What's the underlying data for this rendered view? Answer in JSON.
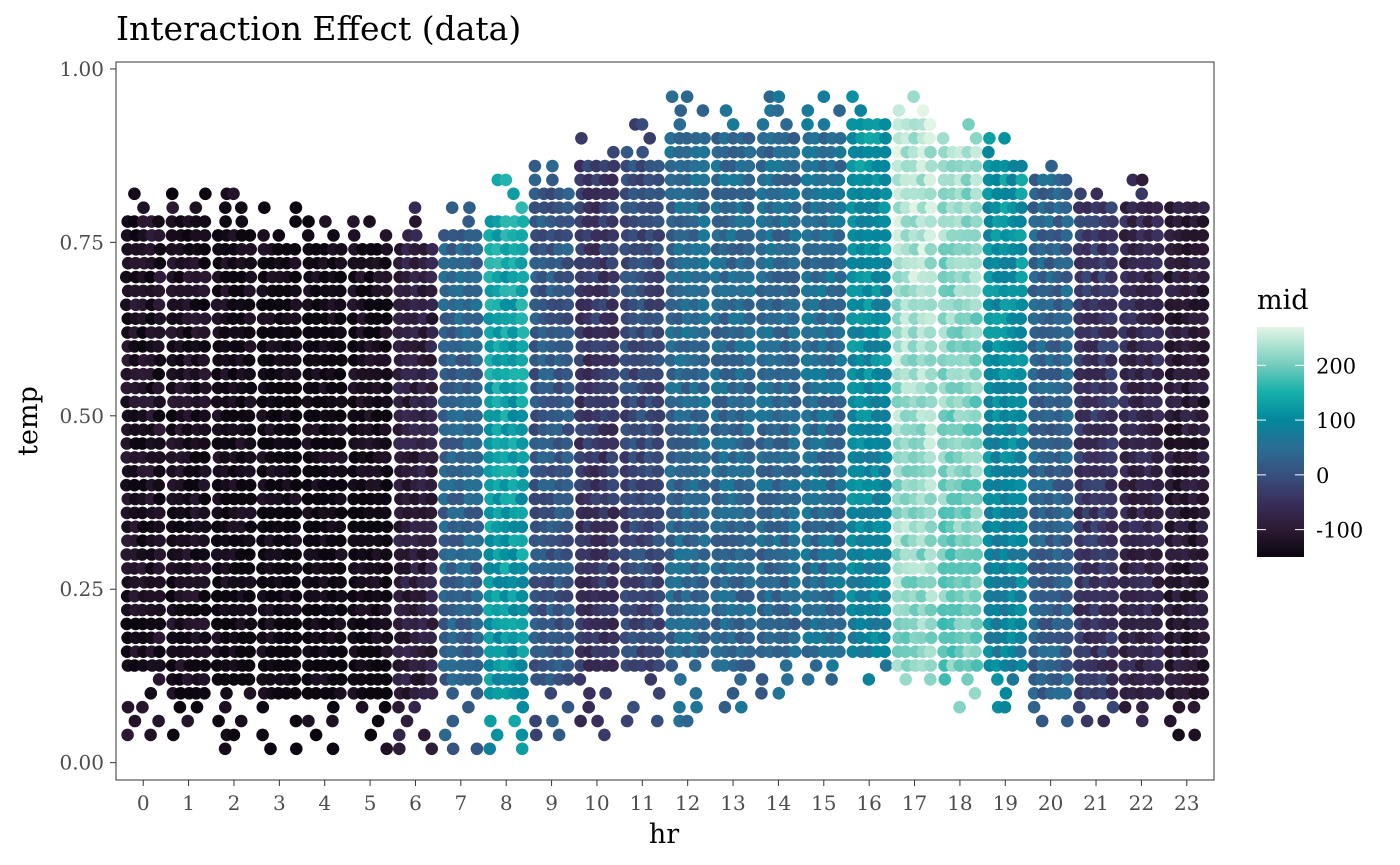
{
  "chart_data": {
    "type": "scatter",
    "title": "Interaction Effect (data)",
    "xlabel": "hr",
    "ylabel": "temp",
    "x_categories": [
      "0",
      "1",
      "2",
      "3",
      "4",
      "5",
      "6",
      "7",
      "8",
      "9",
      "10",
      "11",
      "12",
      "13",
      "14",
      "15",
      "16",
      "17",
      "18",
      "19",
      "20",
      "21",
      "22",
      "23"
    ],
    "y_ticks": [
      0.0,
      0.25,
      0.5,
      0.75,
      1.0
    ],
    "y_tick_labels": [
      "0.00",
      "0.25",
      "0.50",
      "0.75",
      "1.00"
    ],
    "ylim": [
      -0.025,
      1.01
    ],
    "grid": false,
    "panel_border": true,
    "legend": {
      "title": "mid",
      "position": "right",
      "type": "colorbar",
      "range": [
        -150,
        270
      ],
      "ticks": [
        200,
        100,
        0,
        -100
      ],
      "tick_labels": [
        "200",
        "100",
        "0",
        "-100"
      ]
    },
    "colorscale": [
      {
        "value": -150,
        "color": "#0b060f"
      },
      {
        "value": -100,
        "color": "#2c1a33"
      },
      {
        "value": -50,
        "color": "#3a2f5c"
      },
      {
        "value": 0,
        "color": "#37507e"
      },
      {
        "value": 50,
        "color": "#2a6e94"
      },
      {
        "value": 100,
        "color": "#03879c"
      },
      {
        "value": 150,
        "color": "#15afaa"
      },
      {
        "value": 200,
        "color": "#72ccbc"
      },
      {
        "value": 270,
        "color": "#e3f6e6"
      }
    ],
    "series": [
      {
        "hr": 0,
        "mid": -125,
        "y_min": 0.04,
        "y_max": 0.82,
        "dense_min": 0.14,
        "dense_max": 0.78
      },
      {
        "hr": 1,
        "mid": -130,
        "y_min": 0.04,
        "y_max": 0.82,
        "dense_min": 0.1,
        "dense_max": 0.78
      },
      {
        "hr": 2,
        "mid": -140,
        "y_min": 0.02,
        "y_max": 0.82,
        "dense_min": 0.12,
        "dense_max": 0.76
      },
      {
        "hr": 3,
        "mid": -145,
        "y_min": 0.02,
        "y_max": 0.8,
        "dense_min": 0.1,
        "dense_max": 0.74
      },
      {
        "hr": 4,
        "mid": -145,
        "y_min": 0.02,
        "y_max": 0.78,
        "dense_min": 0.1,
        "dense_max": 0.74
      },
      {
        "hr": 5,
        "mid": -140,
        "y_min": 0.02,
        "y_max": 0.78,
        "dense_min": 0.1,
        "dense_max": 0.74
      },
      {
        "hr": 6,
        "mid": -90,
        "y_min": 0.02,
        "y_max": 0.8,
        "dense_min": 0.1,
        "dense_max": 0.74
      },
      {
        "hr": 7,
        "mid": 30,
        "y_min": 0.02,
        "y_max": 0.8,
        "dense_min": 0.12,
        "dense_max": 0.76
      },
      {
        "hr": 8,
        "mid": 130,
        "y_min": 0.02,
        "y_max": 0.84,
        "dense_min": 0.1,
        "dense_max": 0.78
      },
      {
        "hr": 9,
        "mid": 10,
        "y_min": 0.04,
        "y_max": 0.86,
        "dense_min": 0.12,
        "dense_max": 0.82
      },
      {
        "hr": 10,
        "mid": -40,
        "y_min": 0.04,
        "y_max": 0.9,
        "dense_min": 0.14,
        "dense_max": 0.86
      },
      {
        "hr": 11,
        "mid": -10,
        "y_min": 0.06,
        "y_max": 0.92,
        "dense_min": 0.14,
        "dense_max": 0.86
      },
      {
        "hr": 12,
        "mid": 40,
        "y_min": 0.06,
        "y_max": 0.96,
        "dense_min": 0.16,
        "dense_max": 0.9
      },
      {
        "hr": 13,
        "mid": 40,
        "y_min": 0.08,
        "y_max": 0.94,
        "dense_min": 0.14,
        "dense_max": 0.9
      },
      {
        "hr": 14,
        "mid": 40,
        "y_min": 0.1,
        "y_max": 0.96,
        "dense_min": 0.16,
        "dense_max": 0.9
      },
      {
        "hr": 15,
        "mid": 50,
        "y_min": 0.12,
        "y_max": 0.96,
        "dense_min": 0.16,
        "dense_max": 0.9
      },
      {
        "hr": 16,
        "mid": 100,
        "y_min": 0.12,
        "y_max": 0.96,
        "dense_min": 0.16,
        "dense_max": 0.92
      },
      {
        "hr": 17,
        "mid": 230,
        "y_min": 0.12,
        "y_max": 0.96,
        "dense_min": 0.14,
        "dense_max": 0.92
      },
      {
        "hr": 18,
        "mid": 210,
        "y_min": 0.08,
        "y_max": 0.92,
        "dense_min": 0.14,
        "dense_max": 0.88
      },
      {
        "hr": 19,
        "mid": 100,
        "y_min": 0.08,
        "y_max": 0.9,
        "dense_min": 0.14,
        "dense_max": 0.86
      },
      {
        "hr": 20,
        "mid": 30,
        "y_min": 0.06,
        "y_max": 0.86,
        "dense_min": 0.1,
        "dense_max": 0.84
      },
      {
        "hr": 21,
        "mid": -40,
        "y_min": 0.06,
        "y_max": 0.82,
        "dense_min": 0.1,
        "dense_max": 0.8
      },
      {
        "hr": 22,
        "mid": -70,
        "y_min": 0.06,
        "y_max": 0.84,
        "dense_min": 0.1,
        "dense_max": 0.8
      },
      {
        "hr": 23,
        "mid": -100,
        "y_min": 0.04,
        "y_max": 0.8,
        "dense_min": 0.1,
        "dense_max": 0.8
      }
    ]
  }
}
